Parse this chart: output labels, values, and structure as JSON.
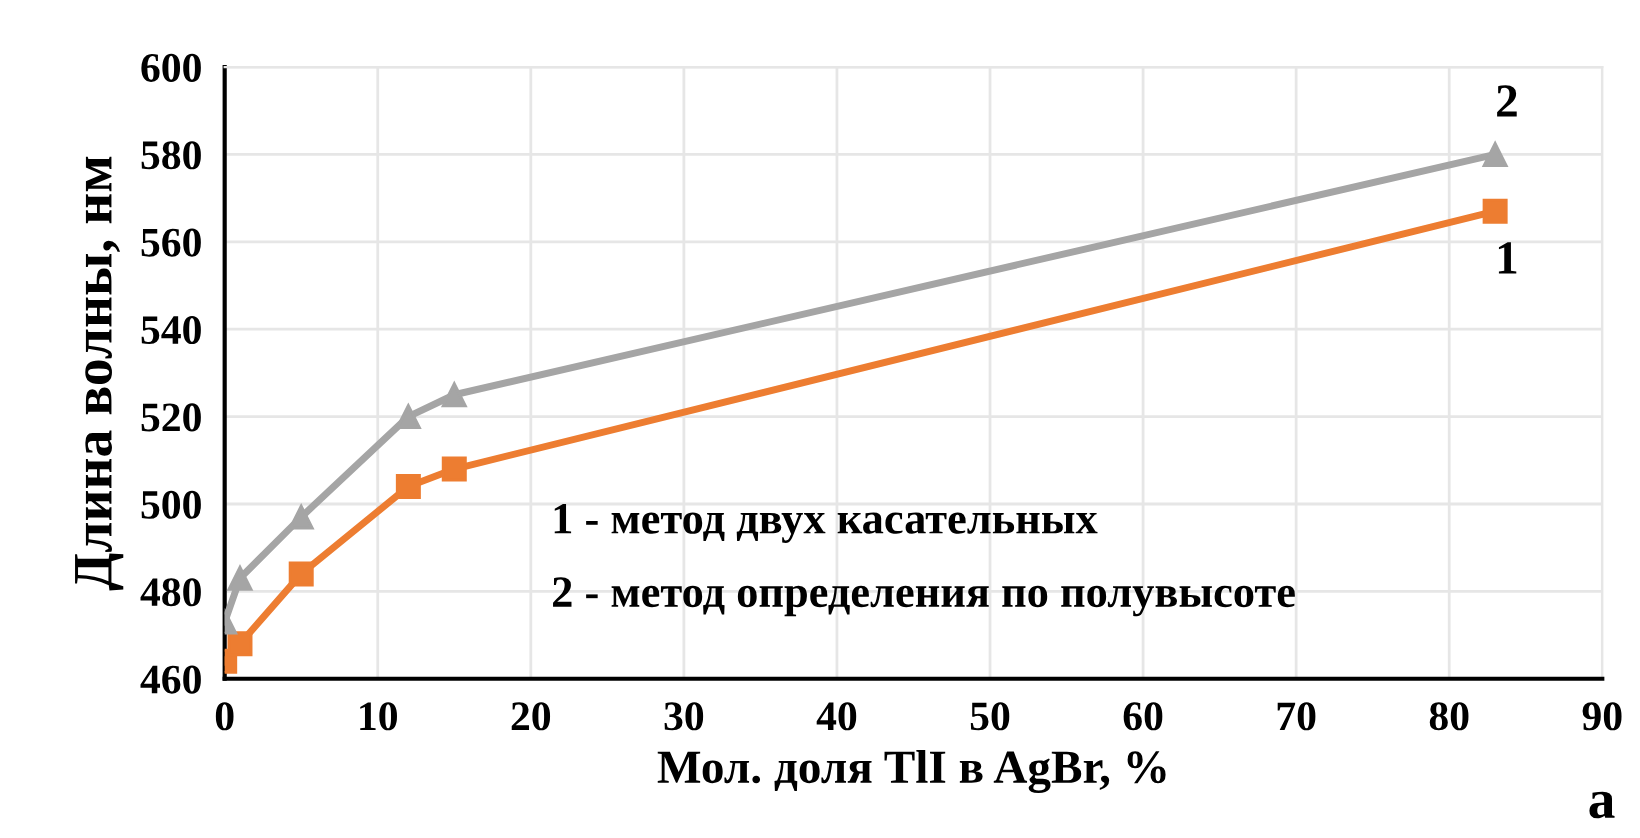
{
  "chart_data": {
    "type": "line",
    "xlabel": "Мол. доля TlI в AgBr, %",
    "ylabel": "Длина волны, нм",
    "x": [
      0,
      1,
      5,
      12,
      15,
      83
    ],
    "series": [
      {
        "name": "1",
        "color": "#ed7d31",
        "marker": "square",
        "values": [
          464,
          468,
          484,
          504,
          508,
          567
        ]
      },
      {
        "name": "2",
        "color": "#a5a5a5",
        "marker": "triangle",
        "values": [
          473,
          483,
          497,
          520,
          525,
          580
        ]
      }
    ],
    "xlim": [
      0,
      90
    ],
    "xticks": [
      0,
      10,
      20,
      30,
      40,
      50,
      60,
      70,
      80,
      90
    ],
    "ylim": [
      460,
      600
    ],
    "yticks": [
      460,
      480,
      500,
      520,
      540,
      560,
      580,
      600
    ],
    "grid": true,
    "line_style": "solid",
    "annotations": [
      "1 - метод двух касательных",
      "2 - метод определения по полувысоте",
      "а"
    ]
  }
}
